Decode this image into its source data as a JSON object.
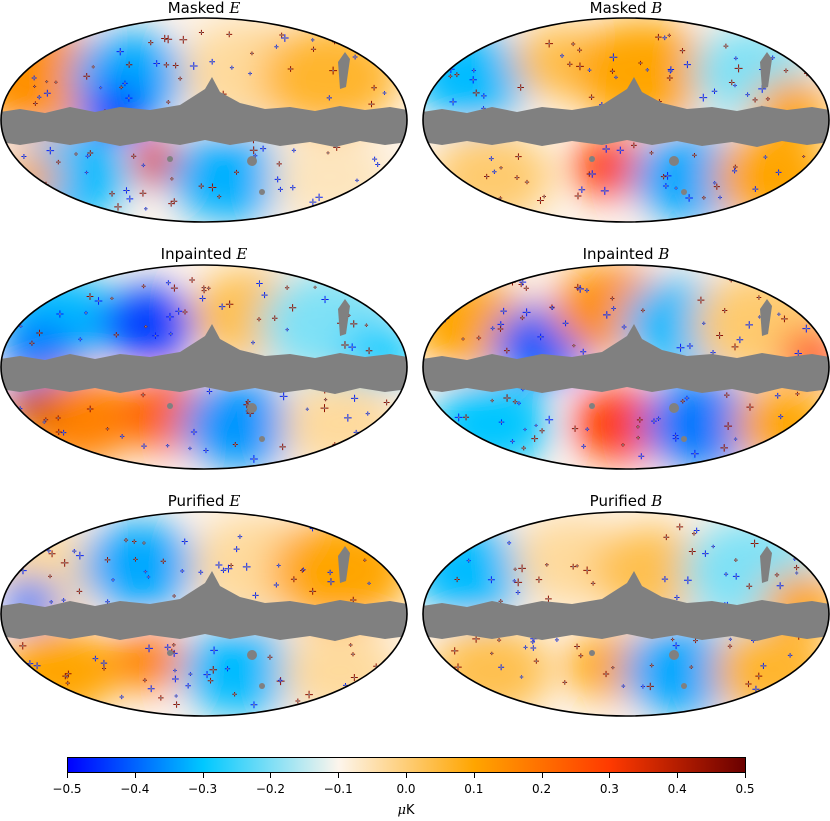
{
  "panels": [
    {
      "prefix": "Masked",
      "field": "E"
    },
    {
      "prefix": "Masked",
      "field": "B"
    },
    {
      "prefix": "Inpainted",
      "field": "E"
    },
    {
      "prefix": "Inpainted",
      "field": "B"
    },
    {
      "prefix": "Purified",
      "field": "E"
    },
    {
      "prefix": "Purified",
      "field": "B"
    }
  ],
  "colorbar": {
    "unit_symbol": "μ",
    "unit_letter": "K",
    "ticks": [
      "−0.5",
      "−0.4",
      "−0.3",
      "−0.2",
      "−0.1",
      "0.0",
      "0.1",
      "0.2",
      "0.3",
      "0.4",
      "0.5"
    ],
    "range": [
      -0.5,
      0.5
    ],
    "colors": [
      "#0000ff",
      "#00c8ff",
      "#fdf5ec",
      "#ffa500",
      "#ff3a00",
      "#6a0000"
    ]
  },
  "mask_color": "#808080"
}
